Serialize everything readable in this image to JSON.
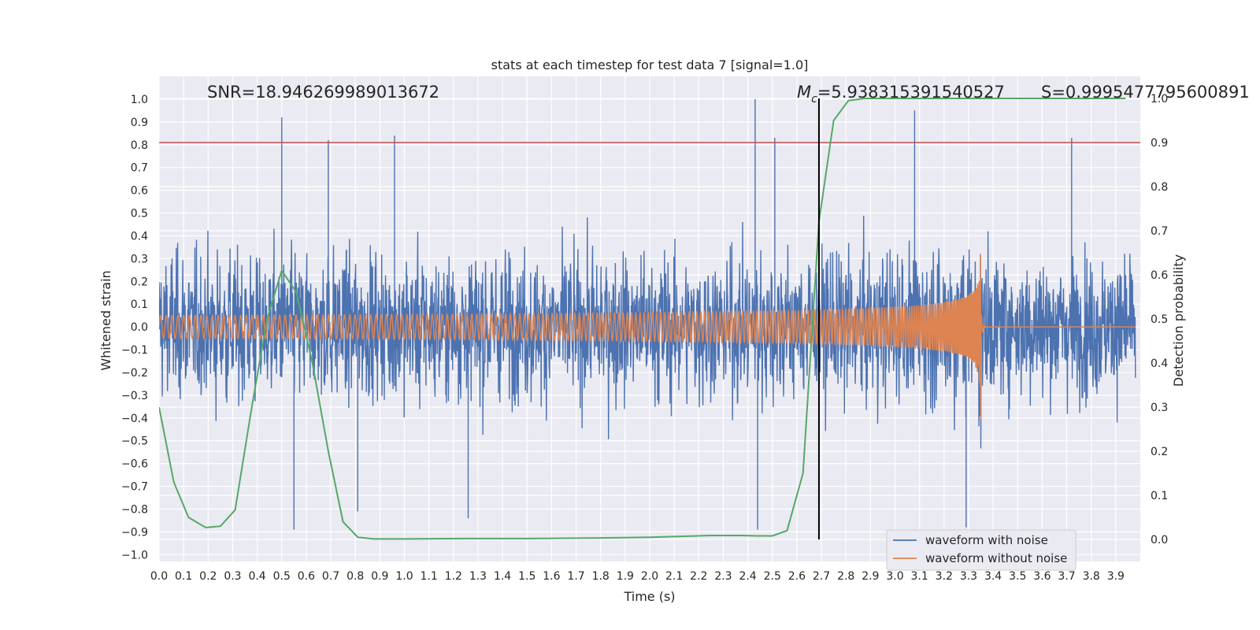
{
  "chart_data": {
    "type": "line",
    "title": "stats at each timestep for test data 7 [signal=1.0]",
    "xlabel": "Time (s)",
    "ylabel": "Whitened strain",
    "y2label": "Detection probability",
    "xlim": [
      0.0,
      4.0
    ],
    "ylim": [
      -1.03,
      1.1
    ],
    "y2lim": [
      -0.05,
      1.05
    ],
    "xticks": [
      "0.0",
      "0.1",
      "0.2",
      "0.3",
      "0.4",
      "0.5",
      "0.6",
      "0.7",
      "0.8",
      "0.9",
      "1.0",
      "1.1",
      "1.2",
      "1.3",
      "1.4",
      "1.5",
      "1.6",
      "1.7",
      "1.8",
      "1.9",
      "2.0",
      "2.1",
      "2.2",
      "2.3",
      "2.4",
      "2.5",
      "2.6",
      "2.7",
      "2.8",
      "2.9",
      "3.0",
      "3.1",
      "3.2",
      "3.3",
      "3.4",
      "3.5",
      "3.6",
      "3.7",
      "3.8",
      "3.9"
    ],
    "yticks": [
      "1.0",
      "0.9",
      "0.8",
      "0.7",
      "0.6",
      "0.5",
      "0.4",
      "0.3",
      "0.2",
      "0.1",
      "0.0",
      "−0.1",
      "−0.2",
      "−0.3",
      "−0.4",
      "−0.5",
      "−0.6",
      "−0.7",
      "−0.8",
      "−0.9",
      "−1.0"
    ],
    "y2ticks": [
      "1.0",
      "0.9",
      "0.8",
      "0.7",
      "0.6",
      "0.5",
      "0.4",
      "0.3",
      "0.2",
      "0.1",
      "0.0"
    ],
    "grid": true,
    "legend_position": "lower-right",
    "annotations": {
      "snr": "SNR=18.946269989013672",
      "mc_symbol": "M",
      "mc_subscript": "c",
      "mc_value": "=5.938315391540527",
      "s": "S=0.9995477795600891"
    },
    "threshold_line": {
      "axis": "y2",
      "value": 0.9,
      "color": "#c44e52"
    },
    "merger_time": 2.69,
    "series": [
      {
        "name": "waveform with noise",
        "color": "#4c72b0",
        "axis": "y",
        "kind": "noise",
        "amplitude": 0.38,
        "peak_spikes": [
          [
            0.5,
            0.92
          ],
          [
            0.69,
            0.82
          ],
          [
            0.96,
            0.84
          ],
          [
            2.43,
            1.0
          ],
          [
            2.51,
            0.83
          ],
          [
            3.08,
            0.95
          ],
          [
            3.72,
            0.83
          ],
          [
            0.55,
            -0.89
          ],
          [
            1.26,
            -0.84
          ],
          [
            2.44,
            -0.89
          ],
          [
            3.29,
            -0.88
          ],
          [
            0.81,
            -0.81
          ]
        ]
      },
      {
        "name": "waveform without noise",
        "color": "#dd8452",
        "axis": "y",
        "kind": "chirp",
        "start_amplitude": 0.05,
        "end_time": 3.35,
        "end_amplitude": 0.48
      },
      {
        "name": "detection probability",
        "color": "#55a868",
        "axis": "y2",
        "x": [
          0.0,
          0.06,
          0.12,
          0.19,
          0.25,
          0.31,
          0.375,
          0.44,
          0.5,
          0.56,
          0.625,
          0.69,
          0.75,
          0.81,
          0.875,
          0.94,
          1.0,
          1.25,
          1.5,
          1.75,
          2.0,
          2.25,
          2.31,
          2.375,
          2.44,
          2.5,
          2.56,
          2.625,
          2.69,
          2.75,
          2.81,
          2.875,
          2.94,
          3.0,
          3.5,
          3.94
        ],
        "y": [
          0.3,
          0.13,
          0.05,
          0.027,
          0.03,
          0.067,
          0.29,
          0.5,
          0.61,
          0.56,
          0.4,
          0.2,
          0.04,
          0.005,
          0.001,
          0.001,
          0.001,
          0.002,
          0.002,
          0.003,
          0.005,
          0.009,
          0.009,
          0.009,
          0.008,
          0.008,
          0.02,
          0.15,
          0.72,
          0.95,
          0.995,
          1.0,
          1.0,
          1.0,
          1.0,
          1.0
        ]
      }
    ]
  }
}
